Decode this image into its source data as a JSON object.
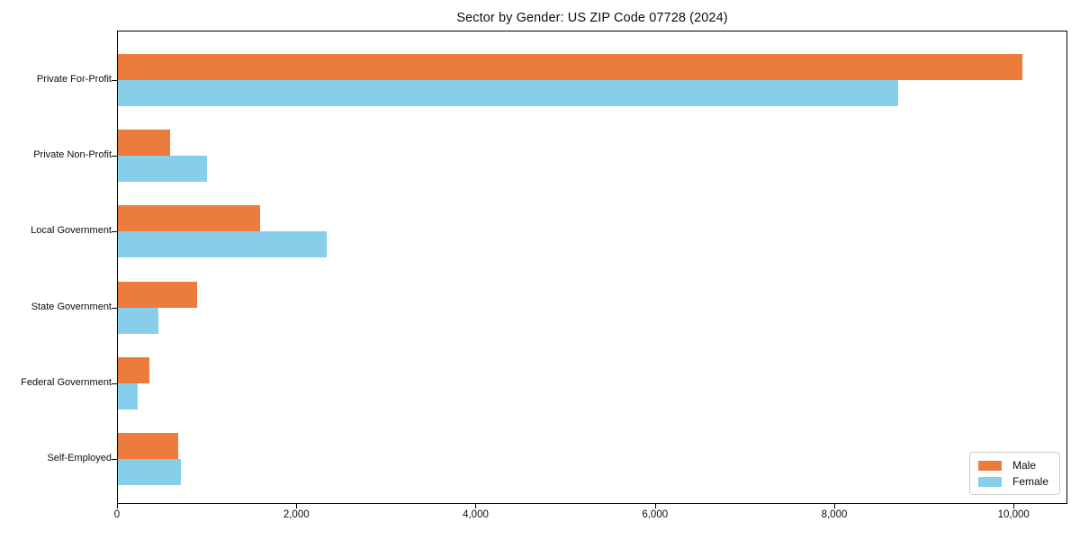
{
  "title": "Sector by Gender: US ZIP Code 07728 (2024)",
  "chart_data": {
    "type": "bar",
    "orientation": "horizontal",
    "title": "Sector by Gender: US ZIP Code 07728 (2024)",
    "categories": [
      "Private For-Profit",
      "Private Non-Profit",
      "Local Government",
      "State Government",
      "Federal Government",
      "Self-Employed"
    ],
    "series": [
      {
        "name": "Male",
        "color": "#EB7C3B",
        "values": [
          10110,
          580,
          1590,
          890,
          350,
          670
        ]
      },
      {
        "name": "Female",
        "color": "#87CEEB",
        "values": [
          8720,
          1000,
          2330,
          450,
          225,
          700
        ]
      }
    ],
    "xlabel": "",
    "ylabel": "",
    "xlim": [
      0,
      10600
    ],
    "x_ticks": [
      0,
      2000,
      4000,
      6000,
      8000,
      10000
    ],
    "x_tick_labels": [
      "0",
      "2,000",
      "4,000",
      "6,000",
      "8,000",
      "10,000"
    ],
    "grid": false,
    "legend": {
      "position": "lower right",
      "entries": [
        "Male",
        "Female"
      ]
    }
  },
  "colors": {
    "male": "#EB7C3B",
    "female": "#87CEEB",
    "axis": "#000000",
    "background": "#ffffff",
    "legend_border": "#cccccc",
    "text": "#0e0e0e"
  }
}
